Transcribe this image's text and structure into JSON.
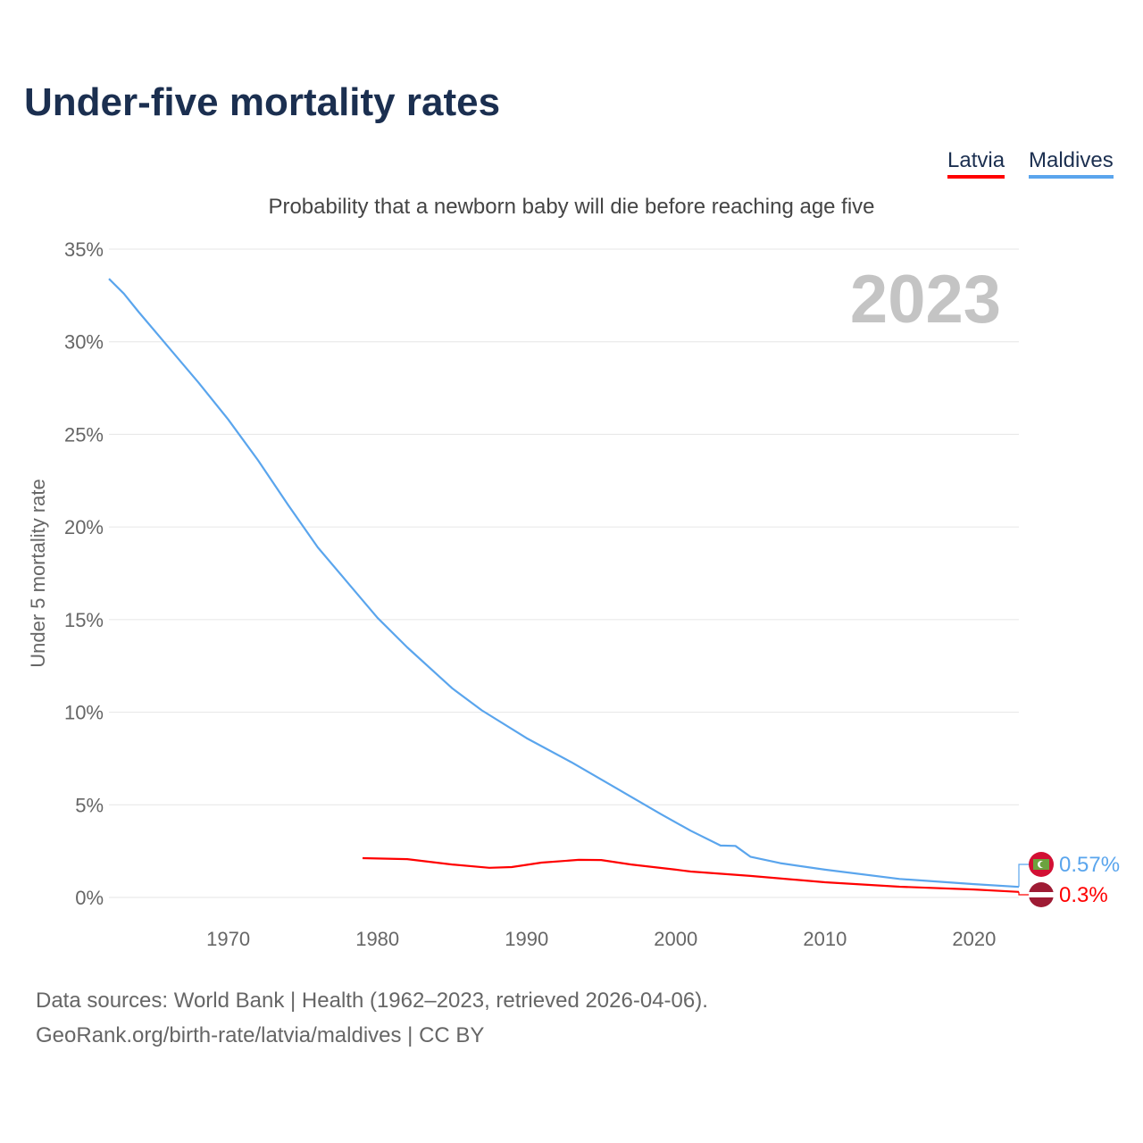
{
  "title": "Under-five mortality rates",
  "legend": [
    {
      "name": "Latvia",
      "color": "#ff0000"
    },
    {
      "name": "Maldives",
      "color": "#5aa5ed"
    }
  ],
  "footer": {
    "line1": "Data sources: World Bank | Health (1962–2023, retrieved 2026-04-06).",
    "line2": "GeoRank.org/birth-rate/latvia/maldives | CC BY"
  },
  "chart_data": {
    "type": "line",
    "title": "Under-five mortality rates",
    "subtitle": "Probability that a newborn baby will die before reaching age five",
    "ylabel": "Under 5 mortality rate",
    "xlabel": "",
    "year_label": "2023",
    "xlim": [
      1962,
      2023
    ],
    "ylim": [
      0,
      35
    ],
    "yticks": [
      0,
      5,
      10,
      15,
      20,
      25,
      30,
      35
    ],
    "ytick_labels": [
      "0%",
      "5%",
      "10%",
      "15%",
      "20%",
      "25%",
      "30%",
      "35%"
    ],
    "xticks": [
      1970,
      1980,
      1990,
      2000,
      2010,
      2020
    ],
    "xtick_labels": [
      "1970",
      "1980",
      "1990",
      "2000",
      "2010",
      "2020"
    ],
    "grid": true,
    "series": [
      {
        "name": "Maldives",
        "color": "#5aa5ed",
        "end_label": "0.57%",
        "x": [
          1962,
          1963,
          1964,
          1966,
          1968,
          1970,
          1972,
          1974,
          1976,
          1978,
          1980,
          1982,
          1985,
          1987,
          1990,
          1993,
          1996,
          1999,
          2001,
          2003,
          2004,
          2005,
          2007,
          2010,
          2015,
          2020,
          2023
        ],
        "y": [
          33.4,
          32.6,
          31.6,
          29.7,
          27.8,
          25.8,
          23.6,
          21.2,
          18.9,
          17.0,
          15.1,
          13.5,
          11.3,
          10.1,
          8.6,
          7.3,
          5.9,
          4.5,
          3.6,
          2.8,
          2.78,
          2.2,
          1.85,
          1.5,
          1.0,
          0.72,
          0.57
        ]
      },
      {
        "name": "Latvia",
        "color": "#ff0000",
        "end_label": "0.3%",
        "x": [
          1979,
          1982,
          1985,
          1987.5,
          1989,
          1991,
          1993.5,
          1995,
          1997,
          2000,
          2001,
          2005,
          2010,
          2015,
          2020,
          2023
        ],
        "y": [
          2.12,
          2.07,
          1.78,
          1.6,
          1.64,
          1.88,
          2.03,
          2.02,
          1.78,
          1.5,
          1.4,
          1.16,
          0.82,
          0.58,
          0.43,
          0.3
        ]
      }
    ]
  }
}
